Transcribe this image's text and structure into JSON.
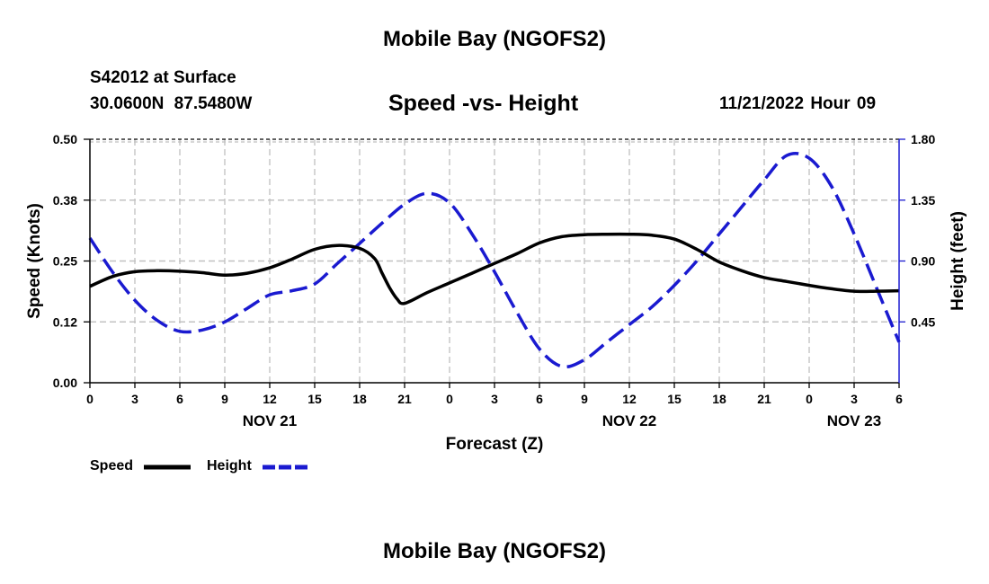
{
  "header": {
    "title": "Mobile Bay (NGOFS2)",
    "station": "S42012 at Surface",
    "coords": "30.0600N  87.5480W",
    "subtitle": "Speed -vs- Height",
    "datetime": "11/21/2022 Hour 09"
  },
  "footer": {
    "title": "Mobile Bay (NGOFS2)"
  },
  "legend": {
    "speed_label": "Speed",
    "height_label": "Height"
  },
  "colors": {
    "speed": "#000000",
    "height": "#1a1ad0",
    "grid": "#c0c0c0"
  },
  "chart_data": {
    "type": "line",
    "xlabel": "Forecast (Z)",
    "ylabel_left": "Speed (Knots)",
    "ylabel_right": "Height (feet)",
    "x_range_hours": [
      0,
      54
    ],
    "x_ticks": [
      {
        "hour": 0,
        "label": "0"
      },
      {
        "hour": 3,
        "label": "3"
      },
      {
        "hour": 6,
        "label": "6"
      },
      {
        "hour": 9,
        "label": "9"
      },
      {
        "hour": 12,
        "label": "12"
      },
      {
        "hour": 15,
        "label": "15"
      },
      {
        "hour": 18,
        "label": "18"
      },
      {
        "hour": 21,
        "label": "21"
      },
      {
        "hour": 24,
        "label": "0"
      },
      {
        "hour": 27,
        "label": "3"
      },
      {
        "hour": 30,
        "label": "6"
      },
      {
        "hour": 33,
        "label": "9"
      },
      {
        "hour": 36,
        "label": "12"
      },
      {
        "hour": 39,
        "label": "15"
      },
      {
        "hour": 42,
        "label": "18"
      },
      {
        "hour": 45,
        "label": "21"
      },
      {
        "hour": 48,
        "label": "0"
      },
      {
        "hour": 51,
        "label": "3"
      },
      {
        "hour": 54,
        "label": "6"
      }
    ],
    "date_labels": [
      {
        "hour": 12,
        "label": "NOV 21"
      },
      {
        "hour": 36,
        "label": "NOV 22"
      },
      {
        "hour": 51,
        "label": "NOV 23"
      }
    ],
    "ylim_left": [
      0,
      0.5
    ],
    "yticks_left": [
      {
        "value": 0.0,
        "label": "0.00"
      },
      {
        "value": 0.125,
        "label": "0.12"
      },
      {
        "value": 0.25,
        "label": "0.25"
      },
      {
        "value": 0.375,
        "label": "0.38"
      },
      {
        "value": 0.5,
        "label": "0.50"
      }
    ],
    "ylim_right": [
      0,
      1.8
    ],
    "yticks_right": [
      {
        "value": 0.45,
        "label": "0.45"
      },
      {
        "value": 0.9,
        "label": "0.90"
      },
      {
        "value": 1.35,
        "label": "1.35"
      },
      {
        "value": 1.8,
        "label": "1.80"
      }
    ],
    "series": [
      {
        "name": "Speed",
        "axis": "left",
        "style": "solid",
        "x": [
          0,
          1.5,
          3,
          4.5,
          6,
          7.5,
          9,
          10.5,
          12,
          13.5,
          15,
          16.5,
          18,
          19,
          19.5,
          20,
          20.5,
          21,
          22.5,
          24,
          25.5,
          27,
          28.5,
          30,
          31.5,
          33,
          34.5,
          36,
          37.5,
          39,
          40.5,
          42,
          43.5,
          45,
          46.5,
          48,
          49.5,
          51,
          52.5,
          54
        ],
        "values": [
          0.198,
          0.218,
          0.228,
          0.23,
          0.229,
          0.226,
          0.221,
          0.225,
          0.236,
          0.254,
          0.274,
          0.282,
          0.276,
          0.255,
          0.225,
          0.195,
          0.172,
          0.163,
          0.185,
          0.205,
          0.225,
          0.245,
          0.265,
          0.287,
          0.3,
          0.304,
          0.305,
          0.305,
          0.303,
          0.295,
          0.274,
          0.248,
          0.23,
          0.216,
          0.208,
          0.2,
          0.193,
          0.188,
          0.188,
          0.189
        ]
      },
      {
        "name": "Height",
        "axis": "right",
        "style": "dashed",
        "x": [
          0,
          1.5,
          3,
          4.5,
          6,
          7.5,
          9,
          10.5,
          12,
          13.5,
          15,
          16.5,
          18,
          19.5,
          21,
          22.5,
          24,
          25.5,
          27,
          28.5,
          30,
          31.5,
          33,
          34.5,
          36,
          37.5,
          39,
          40.5,
          42,
          43.5,
          45,
          46.5,
          48,
          49.5,
          51,
          52.5,
          54
        ],
        "values": [
          1.07,
          0.82,
          0.61,
          0.46,
          0.38,
          0.39,
          0.45,
          0.55,
          0.65,
          0.68,
          0.73,
          0.88,
          1.03,
          1.18,
          1.32,
          1.4,
          1.33,
          1.1,
          0.82,
          0.52,
          0.25,
          0.12,
          0.17,
          0.3,
          0.43,
          0.56,
          0.72,
          0.9,
          1.1,
          1.3,
          1.5,
          1.68,
          1.66,
          1.45,
          1.1,
          0.7,
          0.3
        ]
      }
    ]
  }
}
